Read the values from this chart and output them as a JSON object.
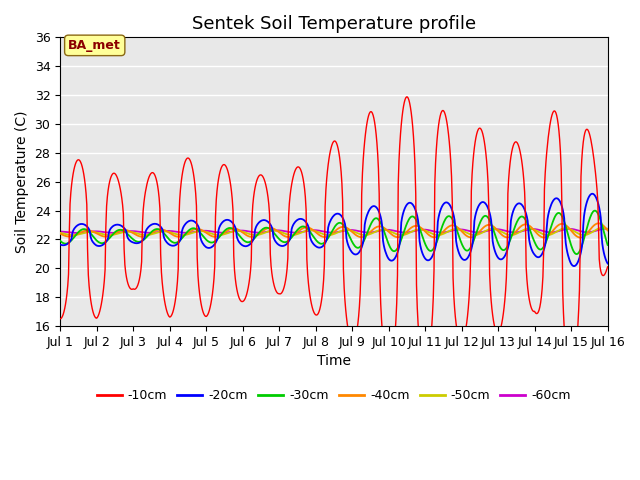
{
  "title": "Sentek Soil Temperature profile",
  "xlabel": "Time",
  "ylabel": "Soil Temperature (C)",
  "ylim": [
    16,
    36
  ],
  "xlim_days": 15,
  "xtick_labels": [
    "Jul 1",
    "Jul 2",
    "Jul 3",
    "Jul 4",
    "Jul 5",
    "Jul 6",
    "Jul 7",
    "Jul 8",
    "Jul 9",
    "Jul 10",
    "Jul 11",
    "Jul 12",
    "Jul 13",
    "Jul 14",
    "Jul 15",
    "Jul 16"
  ],
  "annotation_text": "BA_met",
  "annotation_color": "#8B0000",
  "annotation_bg": "#FFFF99",
  "colors": {
    "-10cm": "#FF0000",
    "-20cm": "#0000FF",
    "-30cm": "#00CC00",
    "-40cm": "#FF8800",
    "-50cm": "#CCCC00",
    "-60cm": "#CC00CC"
  },
  "legend_labels": [
    "-10cm",
    "-20cm",
    "-30cm",
    "-40cm",
    "-50cm",
    "-60cm"
  ],
  "background_color": "#E8E8E8",
  "fig_bg": "#FFFFFF",
  "title_fontsize": 13,
  "axis_label_fontsize": 10,
  "tick_label_fontsize": 9
}
